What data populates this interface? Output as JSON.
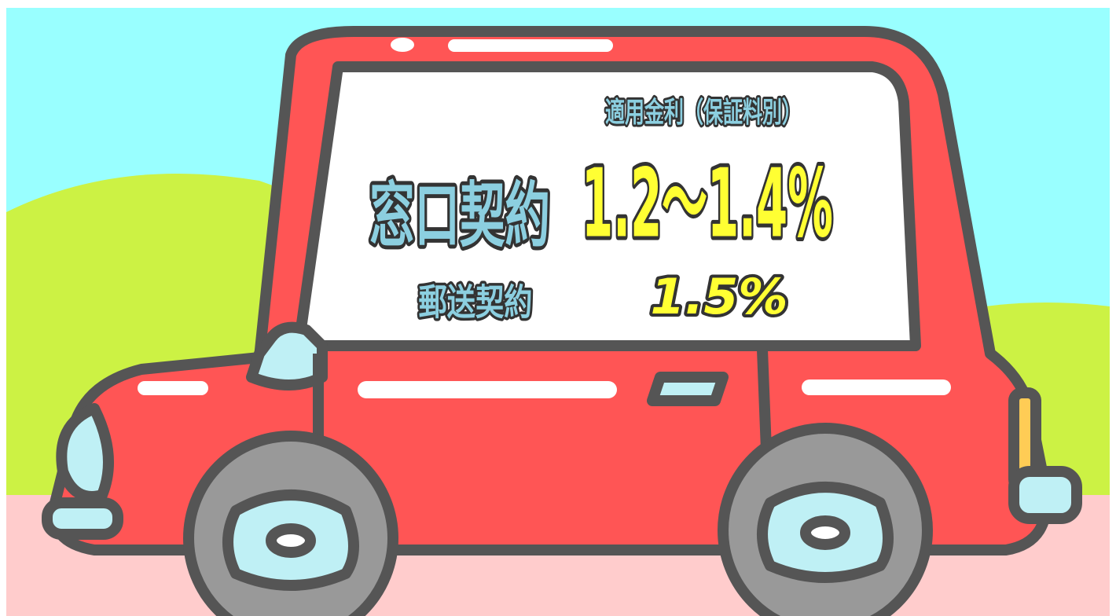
{
  "window_sign": {
    "heading": "適用金利（保証料別）",
    "rows": [
      {
        "label": "窓口契約",
        "rate": "1.2～1.4%"
      },
      {
        "label": "郵送契約",
        "rate": "1.5%"
      }
    ]
  }
}
